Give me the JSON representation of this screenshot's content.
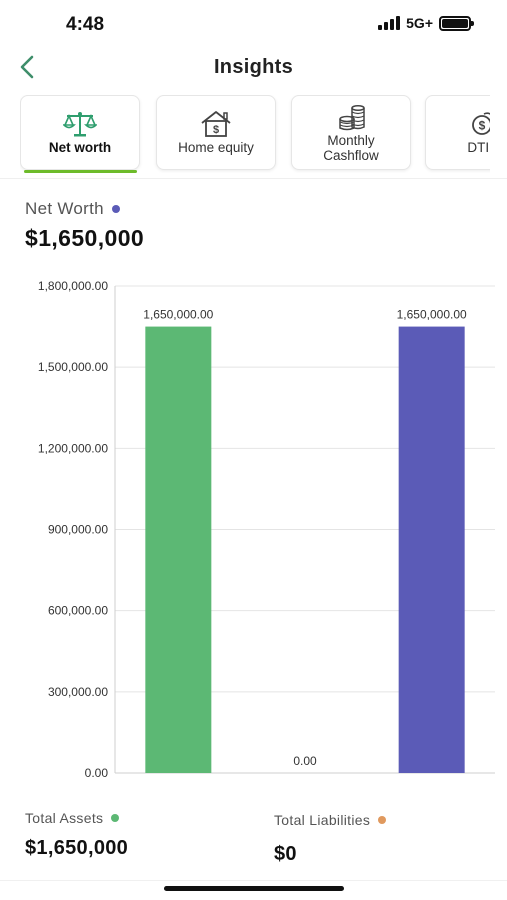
{
  "status_bar": {
    "time": "4:48",
    "network": "5G+"
  },
  "header": {
    "title": "Insights",
    "back_icon": "chevron-left-icon"
  },
  "tabs": [
    {
      "label": "Net worth",
      "icon": "balance-scale-icon",
      "active": true
    },
    {
      "label": "Home equity",
      "icon": "house-dollar-icon",
      "active": false
    },
    {
      "label": "Monthly\nCashflow",
      "icon": "coin-stack-icon",
      "active": false
    },
    {
      "label": "DTI R",
      "icon": "dollar-coin-icon",
      "active": false
    }
  ],
  "summary": {
    "label": "Net Worth",
    "value": "$1,650,000",
    "dot_color": "#5b5bb7"
  },
  "chart_data": {
    "type": "bar",
    "categories": [
      "Total Assets",
      "Total Liabilities",
      "Net Worth"
    ],
    "values": [
      1650000,
      0,
      1650000
    ],
    "data_labels": [
      "1,650,000.00",
      "0.00",
      "1,650,000.00"
    ],
    "colors": [
      "#5cb874",
      "#e0995e",
      "#5b5bb7"
    ],
    "ylim": [
      0,
      1800000
    ],
    "yticks": [
      0,
      300000,
      600000,
      900000,
      1200000,
      1500000,
      1800000
    ],
    "ytick_labels": [
      "0.00",
      "300,000.00",
      "600,000.00",
      "900,000.00",
      "1,200,000.00",
      "1,500,000.00",
      "1,800,000.00"
    ],
    "grid": true
  },
  "legend": {
    "assets": {
      "label": "Total Assets",
      "value": "$1,650,000",
      "dot_color": "#5cb874"
    },
    "liabilities": {
      "label": "Total Liabilities",
      "value": "$0",
      "dot_color": "#e0995e"
    }
  }
}
